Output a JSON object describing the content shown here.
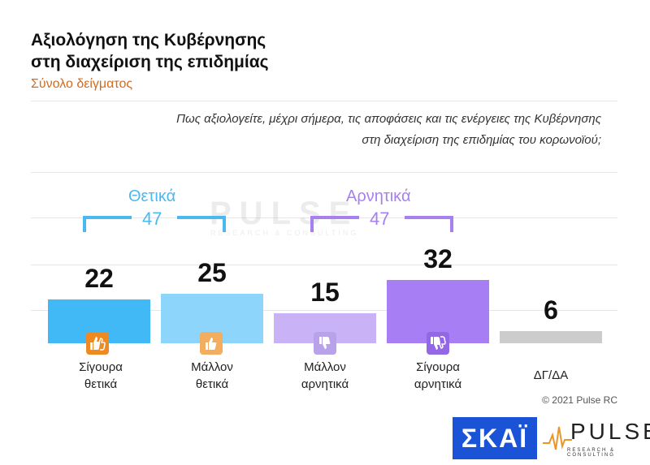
{
  "title_line1": "Αξιολόγηση της Κυβέρνησης",
  "title_line2": "στη διαχείριση της επιδημίας",
  "subtitle": "Σύνολο δείγματος",
  "question_line1": "Πως αξιολογείτε, μέχρι σήμερα, τις αποφάσεις και τις ενέργειες της Κυβέρνησης",
  "question_line2": "στη διαχείριση της επιδημίας του κορωνοϊού;",
  "watermark": {
    "word": "PULSE",
    "sub": "RESEARCH & CONSULTING"
  },
  "groups": [
    {
      "label": "Θετικά",
      "total": "47",
      "color": "#4cb8f0"
    },
    {
      "label": "Αρνητικά",
      "total": "47",
      "color": "#a77ff0"
    }
  ],
  "chart_data": {
    "type": "bar",
    "title": "Αξιολόγηση της Κυβέρνησης στη διαχείριση της επιδημίας",
    "subtitle": "Σύνολο δείγματος",
    "categories": [
      [
        "Σίγουρα",
        "θετικά"
      ],
      [
        "Μάλλον",
        "θετικά"
      ],
      [
        "Μάλλον",
        "αρνητικά"
      ],
      [
        "Σίγουρα",
        "αρνητικά"
      ],
      [
        "ΔΓ/ΔΑ",
        ""
      ]
    ],
    "values": [
      22,
      25,
      15,
      32,
      6
    ],
    "colors": [
      "#42b9f7",
      "#8dd5fb",
      "#c9b3f6",
      "#a87ef5",
      "#cccccc"
    ],
    "icons": [
      "double-thumbs-up-icon",
      "thumbs-up-icon",
      "thumbs-down-icon",
      "double-thumbs-down-icon",
      ""
    ],
    "icon_colors": [
      "#ef8a22",
      "#f2ad5e",
      "#b8a2e8",
      "#9467e6",
      ""
    ],
    "ylim": [
      0,
      40
    ],
    "grid": true
  },
  "copyright": "© 2021 Pulse RC",
  "logos": {
    "skai": "ΣΚΑΪ",
    "pulse": "PULSE",
    "pulse_sub": "RESEARCH & CONSULTING"
  }
}
